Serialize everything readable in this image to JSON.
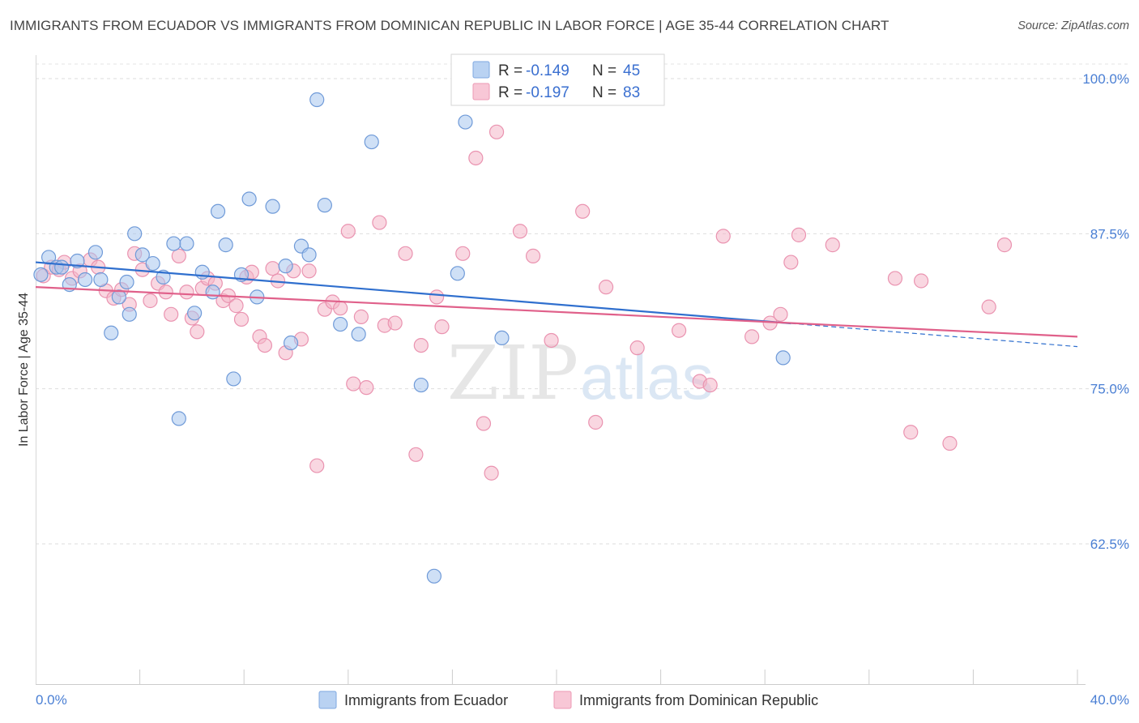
{
  "title": "IMMIGRANTS FROM ECUADOR VS IMMIGRANTS FROM DOMINICAN REPUBLIC IN LABOR FORCE | AGE 35-44 CORRELATION CHART",
  "source": "Source: ZipAtlas.com",
  "watermark": {
    "zip": "ZIP",
    "atlas": "atlas"
  },
  "legend": {
    "r_label": "R = ",
    "n_label": "N = ",
    "series": [
      {
        "r": "-0.149",
        "n": "45"
      },
      {
        "r": "-0.197",
        "n": "83"
      }
    ]
  },
  "chart_data": {
    "type": "scatter",
    "xlabel": "",
    "ylabel": "In Labor Force | Age 35-44",
    "xlim": [
      0,
      40
    ],
    "ylim": [
      50,
      101.5
    ],
    "x_tick_labels": [
      "0.0%",
      "40.0%"
    ],
    "y_ticks": [
      62.5,
      75.0,
      87.5,
      100.0
    ],
    "y_tick_labels": [
      "62.5%",
      "75.0%",
      "87.5%",
      "100.0%"
    ],
    "grid": "horizontal dashed",
    "legend_position": "top-center",
    "colors": {
      "ecuador": "#a8c6ef",
      "ecuador_line": "#2f6fce",
      "dominican": "#f4b6c8",
      "dominican_line": "#e0608a"
    },
    "series": [
      {
        "name": "Immigrants from Ecuador",
        "trend": {
          "x0": 0,
          "y0": 85.2,
          "x1": 40,
          "y1": 78.4,
          "solid_until_x": 29
        },
        "points": [
          [
            0.2,
            84.2
          ],
          [
            0.5,
            85.6
          ],
          [
            0.8,
            84.8
          ],
          [
            1.0,
            84.8
          ],
          [
            1.3,
            83.4
          ],
          [
            1.6,
            85.3
          ],
          [
            1.9,
            83.8
          ],
          [
            2.3,
            86.0
          ],
          [
            2.5,
            83.8
          ],
          [
            2.9,
            79.5
          ],
          [
            3.2,
            82.4
          ],
          [
            3.5,
            83.6
          ],
          [
            3.6,
            81.0
          ],
          [
            3.8,
            87.5
          ],
          [
            4.1,
            85.8
          ],
          [
            4.5,
            85.1
          ],
          [
            4.9,
            84.0
          ],
          [
            5.3,
            86.7
          ],
          [
            5.5,
            72.6
          ],
          [
            5.8,
            86.7
          ],
          [
            6.1,
            81.1
          ],
          [
            6.4,
            84.4
          ],
          [
            6.8,
            82.8
          ],
          [
            7.0,
            89.3
          ],
          [
            7.3,
            86.6
          ],
          [
            7.6,
            75.8
          ],
          [
            7.9,
            84.2
          ],
          [
            8.2,
            90.3
          ],
          [
            8.5,
            82.4
          ],
          [
            9.1,
            89.7
          ],
          [
            9.6,
            84.9
          ],
          [
            9.8,
            78.7
          ],
          [
            10.2,
            86.5
          ],
          [
            10.5,
            85.8
          ],
          [
            10.8,
            98.3
          ],
          [
            11.1,
            89.8
          ],
          [
            11.7,
            80.2
          ],
          [
            12.4,
            79.4
          ],
          [
            12.9,
            94.9
          ],
          [
            14.8,
            75.3
          ],
          [
            15.3,
            59.9
          ],
          [
            16.2,
            84.3
          ],
          [
            16.5,
            96.5
          ],
          [
            17.9,
            79.1
          ],
          [
            28.7,
            77.5
          ]
        ]
      },
      {
        "name": "Immigrants from Dominican Republic",
        "trend": {
          "x0": 0,
          "y0": 83.2,
          "x1": 40,
          "y1": 79.2
        },
        "points": [
          [
            0.3,
            84.1
          ],
          [
            0.6,
            84.8
          ],
          [
            0.9,
            84.6
          ],
          [
            1.1,
            85.2
          ],
          [
            1.4,
            83.9
          ],
          [
            1.7,
            84.5
          ],
          [
            2.1,
            85.4
          ],
          [
            2.4,
            84.8
          ],
          [
            2.7,
            82.9
          ],
          [
            3.0,
            82.3
          ],
          [
            3.3,
            83.0
          ],
          [
            3.6,
            81.8
          ],
          [
            3.8,
            85.9
          ],
          [
            4.1,
            84.6
          ],
          [
            4.4,
            82.1
          ],
          [
            4.7,
            83.5
          ],
          [
            5.0,
            82.8
          ],
          [
            5.2,
            81.0
          ],
          [
            5.5,
            85.7
          ],
          [
            5.8,
            82.8
          ],
          [
            6.0,
            80.7
          ],
          [
            6.2,
            79.6
          ],
          [
            6.4,
            83.1
          ],
          [
            6.6,
            83.9
          ],
          [
            6.9,
            83.5
          ],
          [
            7.2,
            82.1
          ],
          [
            7.4,
            82.5
          ],
          [
            7.7,
            81.7
          ],
          [
            7.9,
            80.6
          ],
          [
            8.1,
            84.0
          ],
          [
            8.3,
            84.4
          ],
          [
            8.6,
            79.2
          ],
          [
            8.8,
            78.5
          ],
          [
            9.1,
            84.7
          ],
          [
            9.3,
            83.7
          ],
          [
            9.6,
            77.9
          ],
          [
            9.9,
            84.5
          ],
          [
            10.2,
            79.0
          ],
          [
            10.5,
            84.5
          ],
          [
            10.8,
            68.8
          ],
          [
            11.1,
            81.4
          ],
          [
            11.4,
            82.0
          ],
          [
            11.7,
            81.5
          ],
          [
            12.0,
            87.7
          ],
          [
            12.2,
            75.4
          ],
          [
            12.5,
            80.8
          ],
          [
            12.7,
            75.1
          ],
          [
            13.2,
            88.4
          ],
          [
            13.4,
            80.1
          ],
          [
            13.8,
            80.3
          ],
          [
            14.2,
            85.9
          ],
          [
            14.6,
            69.7
          ],
          [
            14.8,
            78.5
          ],
          [
            15.4,
            82.4
          ],
          [
            15.6,
            80.0
          ],
          [
            16.4,
            85.9
          ],
          [
            16.9,
            93.6
          ],
          [
            17.2,
            72.2
          ],
          [
            17.5,
            68.2
          ],
          [
            17.7,
            95.7
          ],
          [
            18.6,
            87.7
          ],
          [
            19.1,
            85.7
          ],
          [
            19.8,
            78.9
          ],
          [
            21.0,
            89.3
          ],
          [
            21.5,
            72.3
          ],
          [
            21.9,
            83.2
          ],
          [
            23.1,
            78.3
          ],
          [
            24.7,
            79.7
          ],
          [
            25.5,
            75.6
          ],
          [
            25.9,
            75.3
          ],
          [
            26.4,
            87.3
          ],
          [
            27.5,
            79.2
          ],
          [
            28.2,
            80.3
          ],
          [
            28.6,
            81.0
          ],
          [
            29.0,
            85.2
          ],
          [
            29.3,
            87.4
          ],
          [
            30.6,
            86.6
          ],
          [
            33.0,
            83.9
          ],
          [
            33.6,
            71.5
          ],
          [
            34.0,
            83.7
          ],
          [
            35.1,
            70.6
          ],
          [
            36.6,
            81.6
          ],
          [
            37.2,
            86.6
          ]
        ]
      }
    ]
  },
  "bottom_legend": [
    "Immigrants from Ecuador",
    "Immigrants from Dominican Republic"
  ]
}
